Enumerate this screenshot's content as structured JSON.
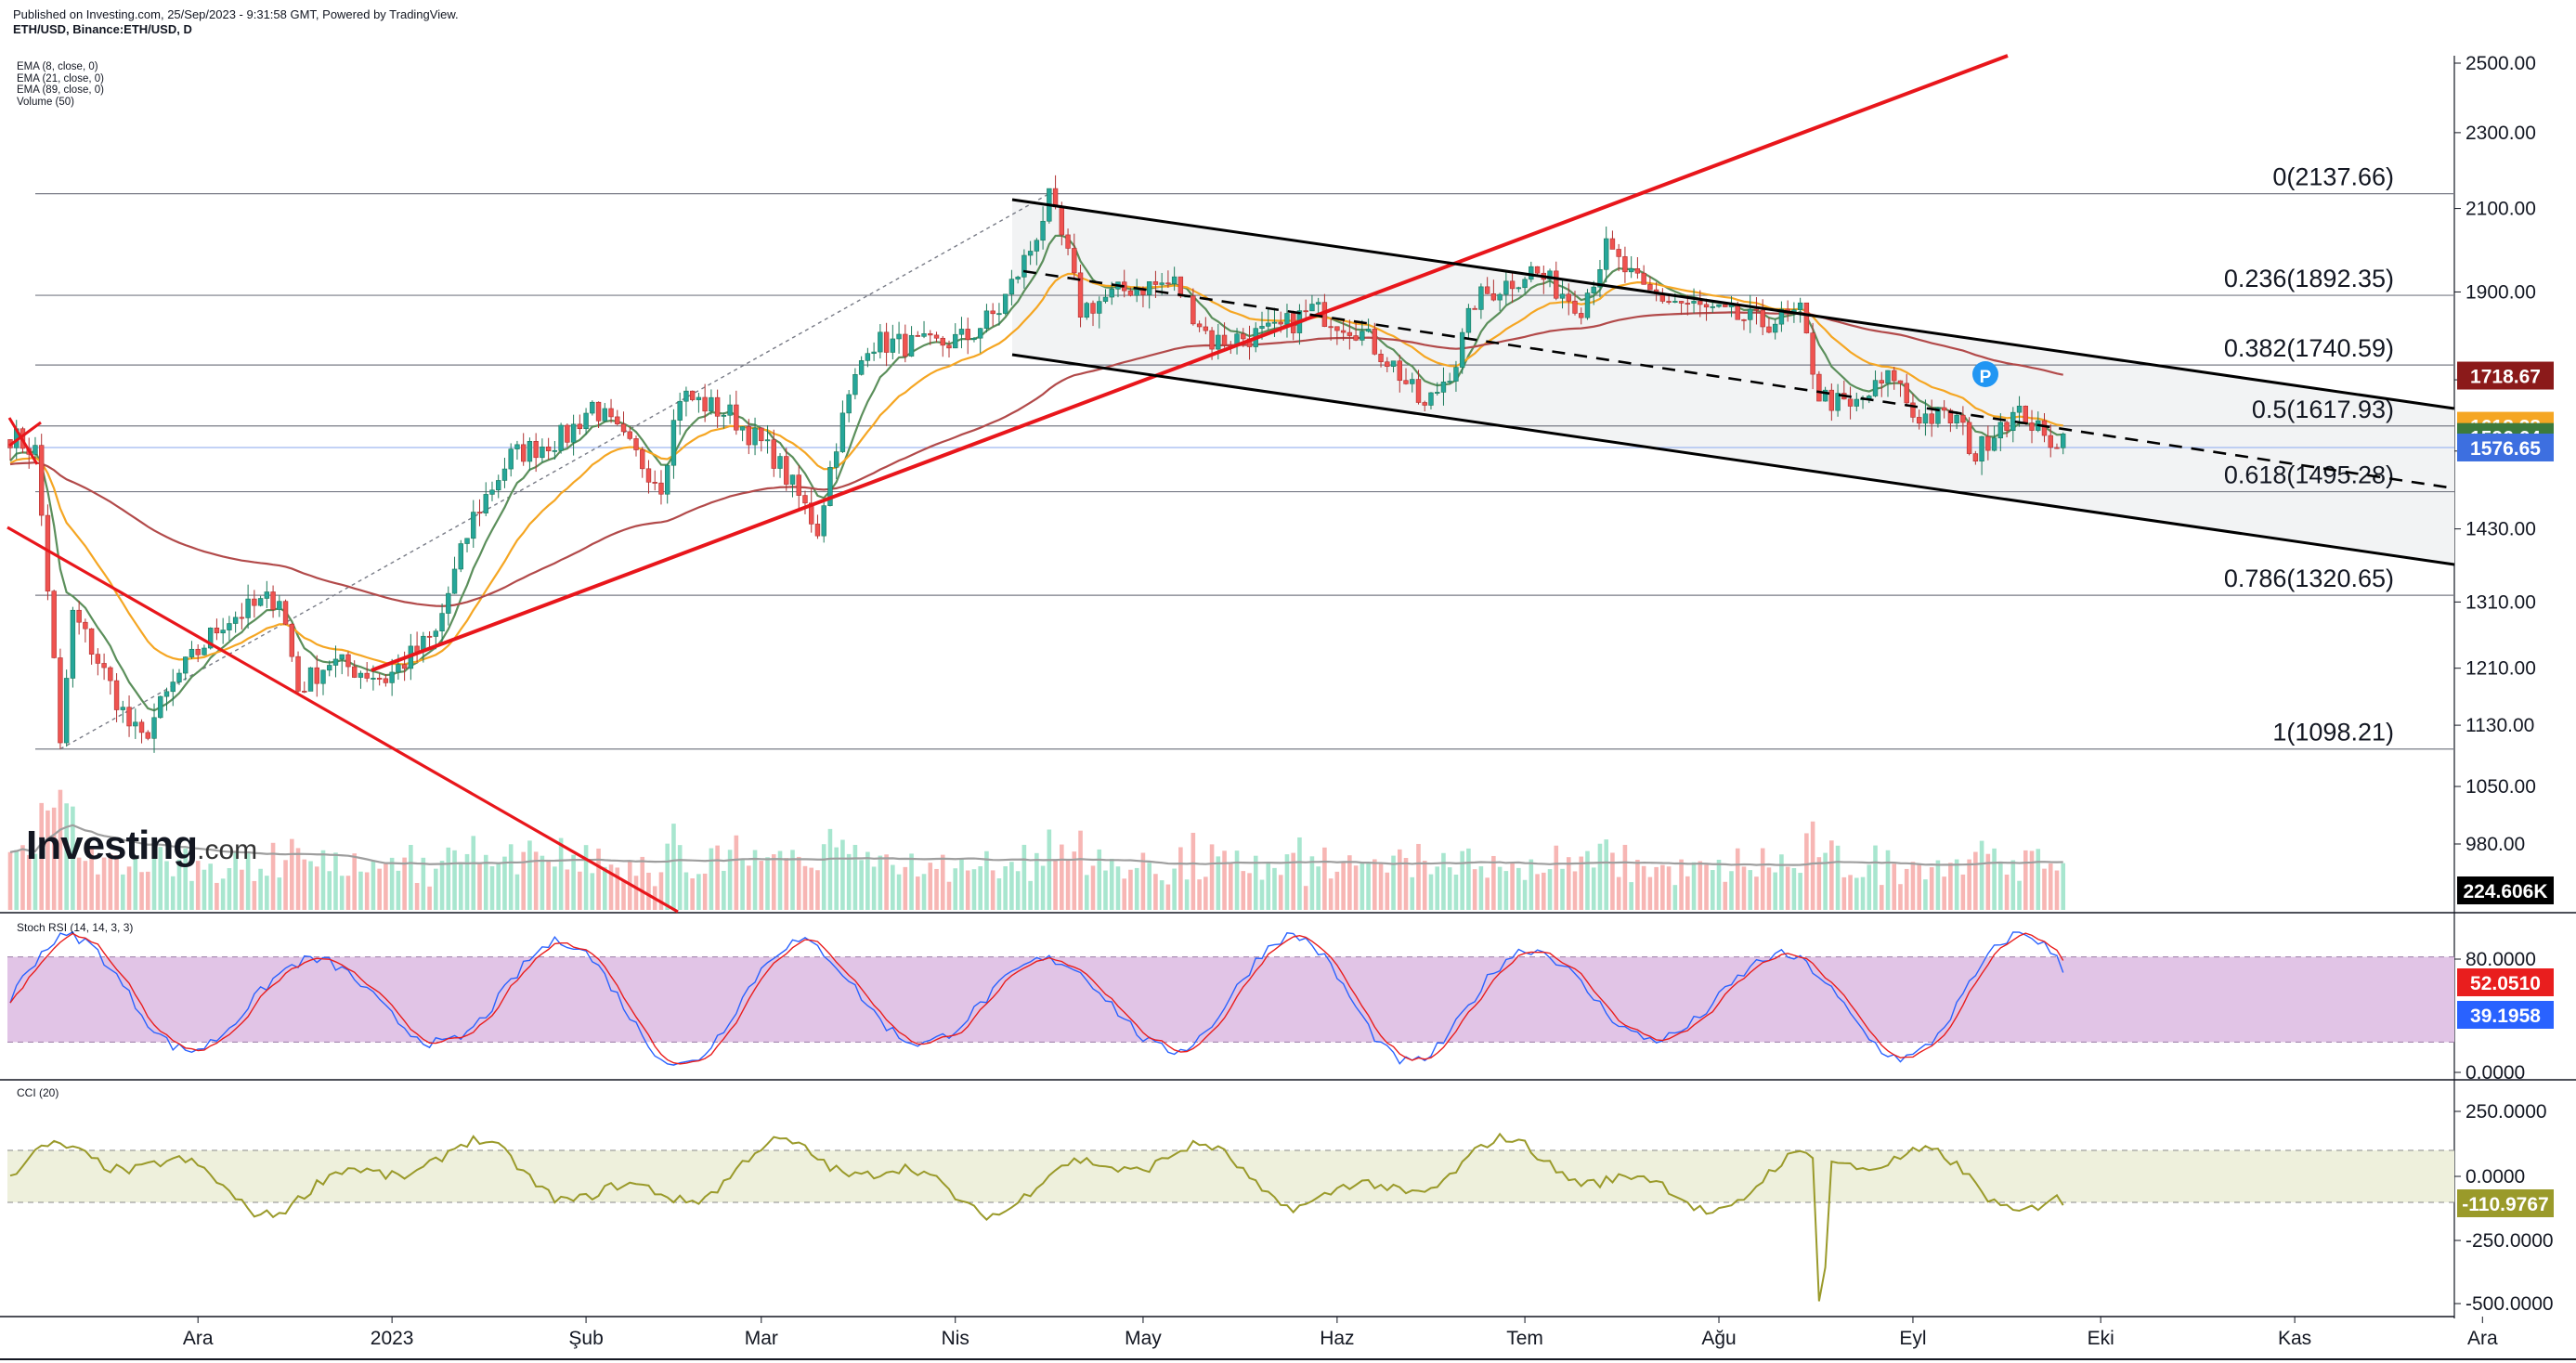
{
  "header": {
    "published": "Published on Investing.com, 25/Sep/2023 - 9:31:58 GMT, Powered by TradingView.",
    "symbol": "ETH/USD, Binance:ETH/USD, D"
  },
  "indicators": [
    "EMA (8, close, 0)",
    "EMA (21, close, 0)",
    "EMA (89, close, 0)",
    "Volume (50)"
  ],
  "logo_text": "Investing",
  "logo_suffix": ".com",
  "stoch_label": "Stoch RSI (14, 14, 3, 3)",
  "cci_label": "CCI (20)",
  "colors": {
    "up": "#26a69a",
    "down": "#ef5350",
    "ema8": "#5b8f5b",
    "ema21": "#f5a623",
    "ema89": "#b24a4a",
    "red_line": "#e8161b",
    "stoch_k": "#2962ff",
    "stoch_d": "#e91e1e",
    "stoch_band": "#e1c4e6",
    "cci_line": "#9a9a2a",
    "cci_band": "#eef0dc"
  },
  "chart_data": {
    "type": "candlestick",
    "price_axis": {
      "ticks": [
        "2500.00",
        "2300.00",
        "2100.00",
        "1900.00",
        "1710.00",
        "1570.00",
        "1430.00",
        "1310.00",
        "1210.00",
        "1130.00",
        "1050.00",
        "980.00"
      ],
      "ylim": [
        900,
        2550
      ]
    },
    "x_axis": {
      "ticks": [
        "Ara",
        "2023",
        "Şub",
        "Mar",
        "Nis",
        "May",
        "Haz",
        "Tem",
        "Ağu",
        "Eyl",
        "Eki",
        "Kas",
        "Ara"
      ]
    },
    "fibonacci": [
      {
        "label": "0(2137.66)",
        "value": 2137.66
      },
      {
        "label": "0.236(1892.35)",
        "value": 1892.35
      },
      {
        "label": "0.382(1740.59)",
        "value": 1740.59
      },
      {
        "label": "0.5(1617.93)",
        "value": 1617.93
      },
      {
        "label": "0.618(1495.28)",
        "value": 1495.28
      },
      {
        "label": "0.786(1320.65)",
        "value": 1320.65
      },
      {
        "label": "1(1098.21)",
        "value": 1098.21
      }
    ],
    "price_tags": [
      {
        "label": "1718.67",
        "color": "#8b1a1a",
        "value": 1718.67
      },
      {
        "label": "1618.28",
        "color": "#f5a623",
        "value": 1618.28
      },
      {
        "label": "1596.64",
        "color": "#3c7a3c",
        "value": 1596.64
      },
      {
        "label": "1576.65",
        "color": "#3d6fe0",
        "value": 1576.65
      }
    ],
    "volume_tag": "224.606K",
    "stoch_rsi": {
      "ticks": [
        "80.0000",
        "0.0000"
      ],
      "tags": [
        {
          "label": "52.0510",
          "color": "#e91e1e"
        },
        {
          "label": "39.1958",
          "color": "#2962ff"
        }
      ]
    },
    "cci": {
      "ticks": [
        "250.0000",
        "0.0000",
        "-250.0000",
        "-500.0000"
      ],
      "tags": [
        {
          "label": "-110.9767",
          "color": "#9a9a2a"
        }
      ]
    },
    "key_prices": [
      {
        "date": "2022-11-09",
        "low": 1098.21
      },
      {
        "date": "2023-04-16",
        "high": 2137.66
      },
      {
        "date": "2023-09-25",
        "close": 1596.64
      }
    ],
    "p_marker": "P"
  }
}
